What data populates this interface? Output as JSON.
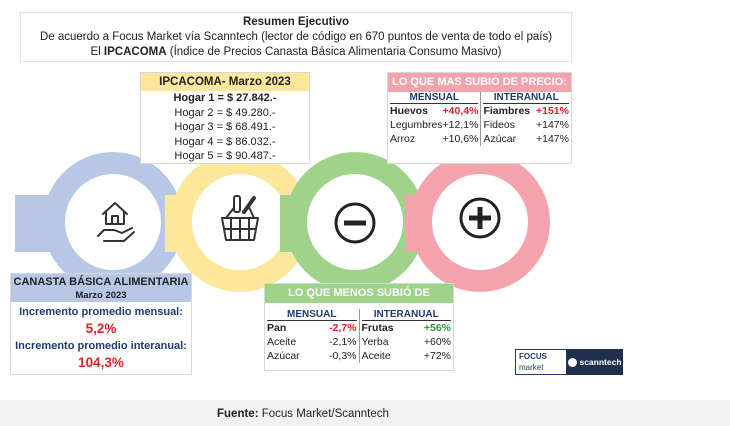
{
  "header": {
    "title": "Resumen Ejecutivo",
    "line2": "De acuerdo a Focus Market vía Scanntech (lector de código en 670 puntos de venta de todo el país)",
    "line3_prefix": "El ",
    "line3_bold": "IPCACOMA",
    "line3_suffix": " (Índice de Precios Canasta Básica Alimentaria Consumo Masivo)"
  },
  "ipcacoma": {
    "title": "IPCACOMA- Marzo 2023",
    "rows": [
      "Hogar 1 = $ 27.842.-",
      "Hogar 2 = $ 49.280.-",
      "Hogar 3 = $ 68.491.-",
      "Hogar 4 = $ 86.032.-",
      "Hogar 5 = $ 90.487.-"
    ]
  },
  "mas_subio": {
    "title": "LO QUE MAS SUBIÓ DE PRECIO:",
    "mensual_label": "MENSUAL",
    "interanual_label": "INTERANUAL",
    "mensual": [
      {
        "item": "Huevos",
        "value": "+40,4%"
      },
      {
        "item": "Legumbres",
        "value": "+12,1%"
      },
      {
        "item": "Arroz",
        "value": "+10,6%"
      }
    ],
    "interanual": [
      {
        "item": "Fiambres",
        "value": "+151%"
      },
      {
        "item": "Fideos",
        "value": "+147%"
      },
      {
        "item": "Azúcar",
        "value": "+147%"
      }
    ]
  },
  "menos_subio": {
    "title": "LO QUE MENOS SUBIÓ DE PRECIO:",
    "mensual_label": "MENSUAL",
    "interanual_label": "INTERANUAL",
    "mensual": [
      {
        "item": "Pan",
        "value": "-2,7%"
      },
      {
        "item": "Aceite",
        "value": "-2,1%"
      },
      {
        "item": "Azúcar",
        "value": "-0,3%"
      }
    ],
    "interanual": [
      {
        "item": "Frutas",
        "value": "+56%"
      },
      {
        "item": "Yerba",
        "value": "+60%"
      },
      {
        "item": "Aceite",
        "value": "+72%"
      }
    ]
  },
  "canasta": {
    "title": "CANASTA BÁSICA ALIMENTARIA",
    "month": "Marzo 2023",
    "mensual_label": "Incremento promedio mensual:",
    "mensual_value": "5,2%",
    "interanual_label": "Incremento promedio interanual:",
    "interanual_value": "104,3%"
  },
  "logos": {
    "focus_line1": "FOCUS",
    "focus_line2": "market",
    "scanntech": "scanntech"
  },
  "footer": {
    "label": "Fuente:",
    "source": " Focus Market/Scanntech"
  },
  "colors": {
    "blue": "#b7c7e6",
    "yellow": "#fce79a",
    "green": "#9fd38a",
    "pink": "#f4a3ad"
  }
}
